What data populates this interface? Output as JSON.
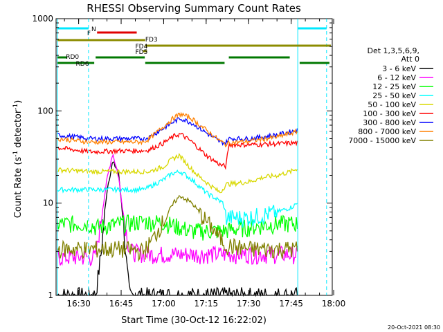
{
  "chart_data": {
    "type": "line",
    "title": "RHESSI Observing Summary Count Rates",
    "xlabel": "Start Time (30-Oct-12 16:22:02)",
    "ylabel": "Count Rate (s^-1 detector^-1)",
    "yscale": "log",
    "ylim": [
      1,
      1000
    ],
    "xlim": [
      "16:22:02",
      "17:59:30"
    ],
    "x_ticks": [
      "16:30",
      "16:45",
      "17:00",
      "17:15",
      "17:30",
      "17:45",
      "18:00"
    ],
    "y_ticks": [
      "1",
      "10",
      "100",
      "1000"
    ],
    "legend_header": [
      "Det 1,3,5,6,9,",
      "Att 0"
    ],
    "legend_placement": "right",
    "footer_date": "20-Oct-2021 08:30",
    "flag_labels": [
      "N",
      "F",
      "FD3",
      "FD4",
      "FD5",
      "RD0",
      "RD6"
    ],
    "gaps": [
      [
        "16:22:02",
        "16:22:30"
      ],
      [
        "16:33:30",
        "16:35:30"
      ],
      [
        "17:47:20",
        "17:48:00"
      ],
      [
        "17:57:30",
        "17:59:30"
      ]
    ],
    "night_markers": [
      "16:33:30",
      "17:57:30"
    ],
    "day_markers": [
      "16:22:30",
      "17:47:20"
    ],
    "series": [
      {
        "name": "3 - 6 keV",
        "color": "#000000",
        "points": [
          [
            "16:22:30",
            1.0
          ],
          [
            "16:36:00",
            1.0
          ],
          [
            "16:38:00",
            3
          ],
          [
            "16:40:00",
            14
          ],
          [
            "16:42:00",
            28
          ],
          [
            "16:44:00",
            22
          ],
          [
            "16:45:30",
            8
          ],
          [
            "16:47:00",
            2
          ],
          [
            "16:48:00",
            1.0
          ],
          [
            "17:47:20",
            1.0
          ]
        ]
      },
      {
        "name": "6 - 12 keV",
        "color": "#ff00ff",
        "points": [
          [
            "16:22:30",
            2.6
          ],
          [
            "16:36:00",
            2.6
          ],
          [
            "16:38:00",
            7
          ],
          [
            "16:40:00",
            18
          ],
          [
            "16:42:00",
            35
          ],
          [
            "16:44:00",
            20
          ],
          [
            "16:46:00",
            7
          ],
          [
            "16:48:00",
            3
          ],
          [
            "16:55:00",
            2.8
          ],
          [
            "17:05:00",
            2.8
          ],
          [
            "17:20:00",
            2.8
          ],
          [
            "17:35:00",
            2.8
          ],
          [
            "17:47:20",
            2.8
          ]
        ]
      },
      {
        "name": "12 - 25 keV",
        "color": "#00ff00",
        "points": [
          [
            "16:22:30",
            6.0
          ],
          [
            "16:34:00",
            6.0
          ],
          [
            "16:36:00",
            5.5
          ],
          [
            "16:45:00",
            6.0
          ],
          [
            "16:53:00",
            6.3
          ],
          [
            "17:00:00",
            6.2
          ],
          [
            "17:10:00",
            5.0
          ],
          [
            "17:20:00",
            5.0
          ],
          [
            "17:30:00",
            5.5
          ],
          [
            "17:40:00",
            6.0
          ],
          [
            "17:47:20",
            6.0
          ]
        ]
      },
      {
        "name": "25 - 50 keV",
        "color": "#00ffff",
        "points": [
          [
            "16:22:30",
            14
          ],
          [
            "16:34:00",
            14
          ],
          [
            "16:45:00",
            14
          ],
          [
            "16:53:00",
            14
          ],
          [
            "16:55:00",
            15
          ],
          [
            "17:00:00",
            18
          ],
          [
            "17:03:00",
            21
          ],
          [
            "17:06:00",
            22
          ],
          [
            "17:10:00",
            18
          ],
          [
            "17:15:00",
            13
          ],
          [
            "17:21:00",
            10
          ],
          [
            "17:22:00",
            7
          ],
          [
            "17:30:00",
            7
          ],
          [
            "17:35:00",
            7.5
          ],
          [
            "17:40:00",
            8
          ],
          [
            "17:45:00",
            9
          ],
          [
            "17:47:20",
            10
          ]
        ]
      },
      {
        "name": "50 - 100 keV",
        "color": "#d8d800",
        "points": [
          [
            "16:22:30",
            23
          ],
          [
            "16:34:00",
            22
          ],
          [
            "16:45:00",
            22
          ],
          [
            "16:53:00",
            22
          ],
          [
            "16:55:00",
            22
          ],
          [
            "17:00:00",
            25
          ],
          [
            "17:03:00",
            30
          ],
          [
            "17:05:30",
            33
          ],
          [
            "17:08:00",
            27
          ],
          [
            "17:12:00",
            20
          ],
          [
            "17:16:00",
            16
          ],
          [
            "17:20:00",
            13
          ],
          [
            "17:22:00",
            16
          ],
          [
            "17:30:00",
            17
          ],
          [
            "17:35:00",
            19
          ],
          [
            "17:40:00",
            20
          ],
          [
            "17:45:00",
            22
          ],
          [
            "17:47:20",
            24
          ]
        ]
      },
      {
        "name": "100 - 300 keV",
        "color": "#ff0000",
        "points": [
          [
            "16:22:30",
            40
          ],
          [
            "16:34:00",
            36
          ],
          [
            "16:45:00",
            37
          ],
          [
            "16:53:00",
            37
          ],
          [
            "16:55:00",
            38
          ],
          [
            "17:00:00",
            45
          ],
          [
            "17:04:00",
            54
          ],
          [
            "17:06:00",
            56
          ],
          [
            "17:10:00",
            46
          ],
          [
            "17:15:00",
            33
          ],
          [
            "17:20:00",
            26
          ],
          [
            "17:22:00",
            25
          ],
          [
            "17:23:00",
            43
          ],
          [
            "17:30:00",
            43
          ],
          [
            "17:40:00",
            44
          ],
          [
            "17:47:20",
            45
          ]
        ]
      },
      {
        "name": "300 - 800 keV",
        "color": "#0000ff",
        "points": [
          [
            "16:22:30",
            55
          ],
          [
            "16:34:00",
            50
          ],
          [
            "16:45:00",
            50
          ],
          [
            "16:53:00",
            50
          ],
          [
            "16:55:00",
            52
          ],
          [
            "17:00:00",
            65
          ],
          [
            "17:04:00",
            78
          ],
          [
            "17:06:00",
            83
          ],
          [
            "17:10:00",
            74
          ],
          [
            "17:15:00",
            58
          ],
          [
            "17:20:00",
            46
          ],
          [
            "17:22:00",
            45
          ],
          [
            "17:23:00",
            50
          ],
          [
            "17:30:00",
            50
          ],
          [
            "17:40:00",
            55
          ],
          [
            "17:47:20",
            62
          ]
        ]
      },
      {
        "name": "800 - 7000 keV",
        "color": "#ff8000",
        "points": [
          [
            "16:22:30",
            50
          ],
          [
            "16:34:00",
            46
          ],
          [
            "16:45:00",
            46
          ],
          [
            "16:53:00",
            46
          ],
          [
            "16:55:00",
            50
          ],
          [
            "17:00:00",
            68
          ],
          [
            "17:04:00",
            86
          ],
          [
            "17:06:00",
            93
          ],
          [
            "17:10:00",
            82
          ],
          [
            "17:15:00",
            62
          ],
          [
            "17:20:00",
            47
          ],
          [
            "17:22:00",
            43
          ],
          [
            "17:23:00",
            45
          ],
          [
            "17:30:00",
            47
          ],
          [
            "17:40:00",
            52
          ],
          [
            "17:47:20",
            60
          ]
        ]
      },
      {
        "name": "7000 - 15000 keV",
        "color": "#808000",
        "points": [
          [
            "16:22:30",
            3.2
          ],
          [
            "16:34:00",
            3.2
          ],
          [
            "16:45:00",
            3.2
          ],
          [
            "16:53:00",
            3.0
          ],
          [
            "16:56:00",
            4.0
          ],
          [
            "17:00:00",
            6.5
          ],
          [
            "17:04:00",
            10.5
          ],
          [
            "17:06:00",
            12
          ],
          [
            "17:10:00",
            10
          ],
          [
            "17:14:00",
            7
          ],
          [
            "17:18:00",
            5
          ],
          [
            "17:22:00",
            3.5
          ],
          [
            "17:30:00",
            3.2
          ],
          [
            "17:40:00",
            3.2
          ],
          [
            "17:47:20",
            3.2
          ]
        ]
      }
    ]
  }
}
